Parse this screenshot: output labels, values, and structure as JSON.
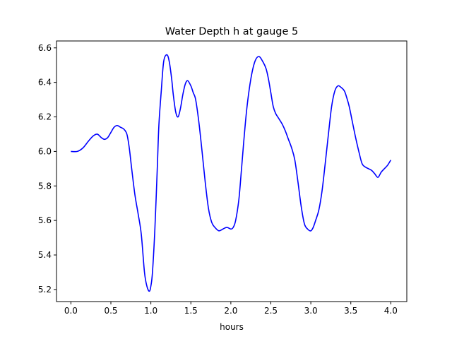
{
  "chart_data": {
    "type": "line",
    "title": "Water Depth h at gauge 5",
    "xlabel": "hours",
    "ylabel": "",
    "xlim": [
      -0.18,
      4.2
    ],
    "ylim": [
      5.13,
      6.64
    ],
    "xticks": [
      0.0,
      0.5,
      1.0,
      1.5,
      2.0,
      2.5,
      3.0,
      3.5,
      4.0
    ],
    "xtick_labels": [
      "0.0",
      "0.5",
      "1.0",
      "1.5",
      "2.0",
      "2.5",
      "3.0",
      "3.5",
      "4.0"
    ],
    "yticks": [
      5.2,
      5.4,
      5.6,
      5.8,
      6.0,
      6.2,
      6.4,
      6.6
    ],
    "ytick_labels": [
      "5.2",
      "5.4",
      "5.6",
      "5.8",
      "6.0",
      "6.2",
      "6.4",
      "6.6"
    ],
    "grid": false,
    "series": [
      {
        "color": "#0000ff",
        "x": [
          0.0,
          0.08,
          0.15,
          0.22,
          0.28,
          0.33,
          0.38,
          0.42,
          0.46,
          0.5,
          0.54,
          0.58,
          0.62,
          0.66,
          0.7,
          0.73,
          0.76,
          0.8,
          0.84,
          0.88,
          0.92,
          0.95,
          0.98,
          1.0,
          1.02,
          1.05,
          1.08,
          1.1,
          1.13,
          1.16,
          1.2,
          1.23,
          1.26,
          1.28,
          1.31,
          1.34,
          1.37,
          1.4,
          1.43,
          1.46,
          1.5,
          1.53,
          1.56,
          1.6,
          1.64,
          1.68,
          1.72,
          1.76,
          1.8,
          1.85,
          1.9,
          1.95,
          2.0,
          2.03,
          2.06,
          2.1,
          2.13,
          2.16,
          2.2,
          2.25,
          2.3,
          2.35,
          2.4,
          2.44,
          2.47,
          2.5,
          2.53,
          2.56,
          2.6,
          2.64,
          2.68,
          2.72,
          2.76,
          2.8,
          2.84,
          2.88,
          2.92,
          2.96,
          3.0,
          3.03,
          3.06,
          3.1,
          3.14,
          3.18,
          3.22,
          3.26,
          3.3,
          3.34,
          3.38,
          3.42,
          3.45,
          3.48,
          3.52,
          3.56,
          3.6,
          3.64,
          3.68,
          3.72,
          3.76,
          3.8,
          3.84,
          3.88,
          3.92,
          3.96,
          4.0
        ],
        "y": [
          6.0,
          6.0,
          6.02,
          6.06,
          6.09,
          6.1,
          6.08,
          6.07,
          6.08,
          6.11,
          6.14,
          6.15,
          6.14,
          6.13,
          6.1,
          6.02,
          5.9,
          5.75,
          5.64,
          5.52,
          5.3,
          5.22,
          5.19,
          5.22,
          5.3,
          5.55,
          5.9,
          6.15,
          6.35,
          6.52,
          6.56,
          6.52,
          6.42,
          6.33,
          6.23,
          6.2,
          6.25,
          6.33,
          6.39,
          6.41,
          6.38,
          6.34,
          6.3,
          6.17,
          6.0,
          5.82,
          5.67,
          5.59,
          5.56,
          5.54,
          5.55,
          5.56,
          5.55,
          5.56,
          5.6,
          5.72,
          5.88,
          6.05,
          6.25,
          6.42,
          6.52,
          6.55,
          6.52,
          6.48,
          6.42,
          6.34,
          6.26,
          6.22,
          6.19,
          6.16,
          6.12,
          6.07,
          6.02,
          5.95,
          5.82,
          5.68,
          5.58,
          5.55,
          5.54,
          5.56,
          5.6,
          5.66,
          5.77,
          5.93,
          6.1,
          6.26,
          6.35,
          6.38,
          6.37,
          6.35,
          6.31,
          6.26,
          6.17,
          6.08,
          6.0,
          5.93,
          5.91,
          5.9,
          5.89,
          5.87,
          5.85,
          5.88,
          5.9,
          5.92,
          5.95
        ]
      }
    ]
  }
}
